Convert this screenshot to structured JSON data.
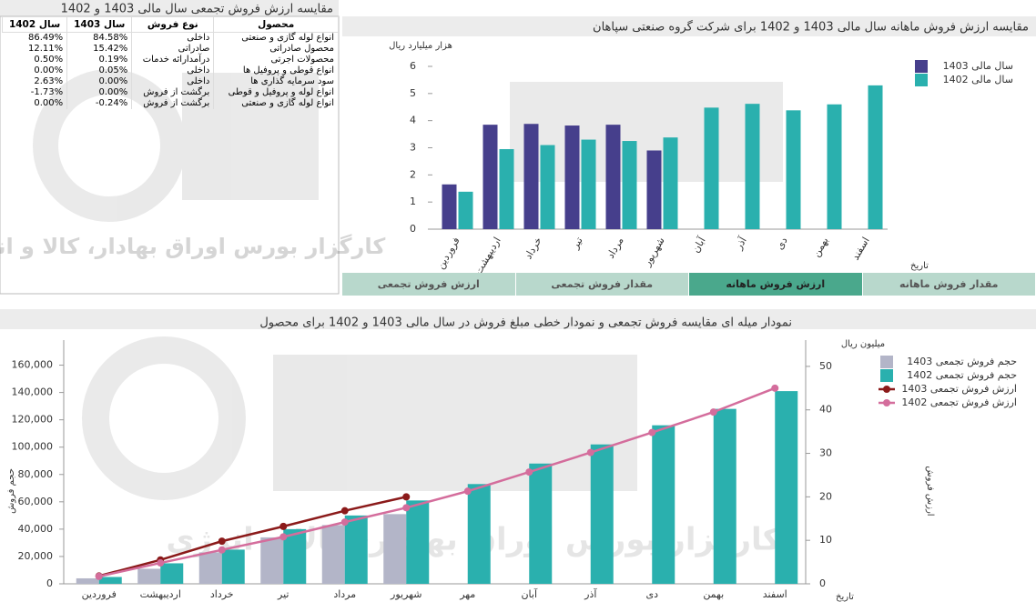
{
  "table_panel": {
    "title": "مقایسه ارزش فروش تجمعی سال مالی 1403 و 1402",
    "columns": [
      "محصول",
      "نوع فروش",
      "سال 1403",
      "سال 1402"
    ],
    "rows": [
      [
        "انواع لوله گازی و صنعتی",
        "داخلی",
        "84.58%",
        "86.49%"
      ],
      [
        "محصول صادراتی",
        "صادراتی",
        "15.42%",
        "12.11%"
      ],
      [
        "محصولات اجرتی",
        "درآمدارائه خدمات",
        "0.19%",
        "0.50%"
      ],
      [
        "انواع قوطی و پروفیل ها",
        "داخلی",
        "0.05%",
        "0.00%"
      ],
      [
        "سود سرمایه گذاری ها",
        "داخلی",
        "0.00%",
        "2.63%"
      ],
      [
        "انواع لوله و پروفیل و قوطی",
        "برگشت از فروش",
        "0.00%",
        "-1.73%"
      ],
      [
        "انواع لوله گازی و صنعتی",
        "برگشت از فروش",
        "-0.24%",
        "0.00%"
      ]
    ]
  },
  "tabs": [
    "ارزش فروش تجمعی",
    "مقدار فروش تجمعی",
    "ارزش فروش ماهانه",
    "مقدار فروش ماهانه"
  ],
  "active_tab": 2,
  "watermark": "کارگزار بورس اوراق بهادار، کالا و انرژی",
  "chart_data": [
    {
      "type": "bar",
      "title": "مقایسه ارزش فروش ماهانه سال مالی 1403 و 1402 برای شرکت گروه صنعتی سپاهان",
      "y_label": "هزار میلیارد ریال",
      "x_label": "تاریخ",
      "categories": [
        "فروردین",
        "اردیبهشت",
        "خرداد",
        "تیر",
        "مرداد",
        "شهریور",
        "آبان",
        "آذر",
        "دی",
        "بهمن",
        "اسفند"
      ],
      "series": [
        {
          "name": "سال مالی 1403",
          "color": "#463f8c",
          "type": "bar",
          "values": [
            1.65,
            3.85,
            3.88,
            3.82,
            3.85,
            2.9,
            null,
            null,
            null,
            null,
            null
          ]
        },
        {
          "name": "سال مالی 1402",
          "color": "#2ab0ae",
          "type": "bar",
          "values": [
            1.38,
            2.95,
            3.1,
            3.3,
            3.25,
            3.38,
            4.48,
            4.62,
            4.38,
            4.6,
            5.3
          ]
        }
      ],
      "ylim": [
        0,
        6
      ],
      "yticks": [
        0,
        1,
        2,
        3,
        4,
        5,
        6
      ],
      "legend": "right"
    },
    {
      "type": "bar-line",
      "title": "نمودار میله ای مقایسه فروش تجمعی و نمودار خطی مبلغ فروش در سال مالی 1403 و 1402 برای محصول",
      "y_label": "حجم فروش",
      "y2_label": "ارزش فروش",
      "y2_unit": "میلیون ریال",
      "x_label": "تاریخ",
      "categories": [
        "فروردین",
        "اردیبهشت",
        "خرداد",
        "تیر",
        "مرداد",
        "شهریور",
        "مهر",
        "آبان",
        "آذر",
        "دی",
        "بهمن",
        "اسفند"
      ],
      "series": [
        {
          "name": "حجم فروش تجمعی 1403",
          "color": "#b3b5c8",
          "type": "bar",
          "values": [
            4000,
            11000,
            23000,
            34000,
            43000,
            51000,
            null,
            null,
            null,
            null,
            null,
            null
          ]
        },
        {
          "name": "حجم فروش تجمعی 1402",
          "color": "#2ab0ae",
          "type": "bar",
          "values": [
            5000,
            15000,
            25000,
            40000,
            50000,
            61000,
            73000,
            88000,
            102000,
            116000,
            128000,
            141000
          ]
        },
        {
          "name": "ارزش فروش تجمعی 1403",
          "color": "#8b1a1a",
          "type": "line",
          "axis": "y2",
          "values": [
            1.8,
            5.5,
            9.8,
            13.2,
            16.8,
            20.0,
            null,
            null,
            null,
            null,
            null,
            null
          ]
        },
        {
          "name": "ارزش فروش تجمعی 1402",
          "color": "#d46d9c",
          "type": "line",
          "axis": "y2",
          "values": [
            1.7,
            4.8,
            7.8,
            10.8,
            14.2,
            17.5,
            21.3,
            25.7,
            30.2,
            34.8,
            39.5,
            45
          ]
        }
      ],
      "ylim": [
        0,
        175000
      ],
      "yticks": [
        0,
        {
          "value": 20000,
          "label": "20,000"
        },
        {
          "value": 40000,
          "label": "40,000"
        },
        {
          "value": 60000,
          "label": "60,000"
        },
        {
          "value": 80000,
          "label": "80,000"
        },
        {
          "value": 100000,
          "label": "100,000"
        },
        {
          "value": 120000,
          "label": "120,000"
        },
        {
          "value": 140000,
          "label": "140,000"
        },
        {
          "value": 160000,
          "label": "160,000"
        }
      ],
      "y2lim": [
        0,
        55
      ],
      "y2ticks": [
        0,
        10,
        20,
        30,
        40,
        50
      ],
      "legend": "right"
    }
  ]
}
